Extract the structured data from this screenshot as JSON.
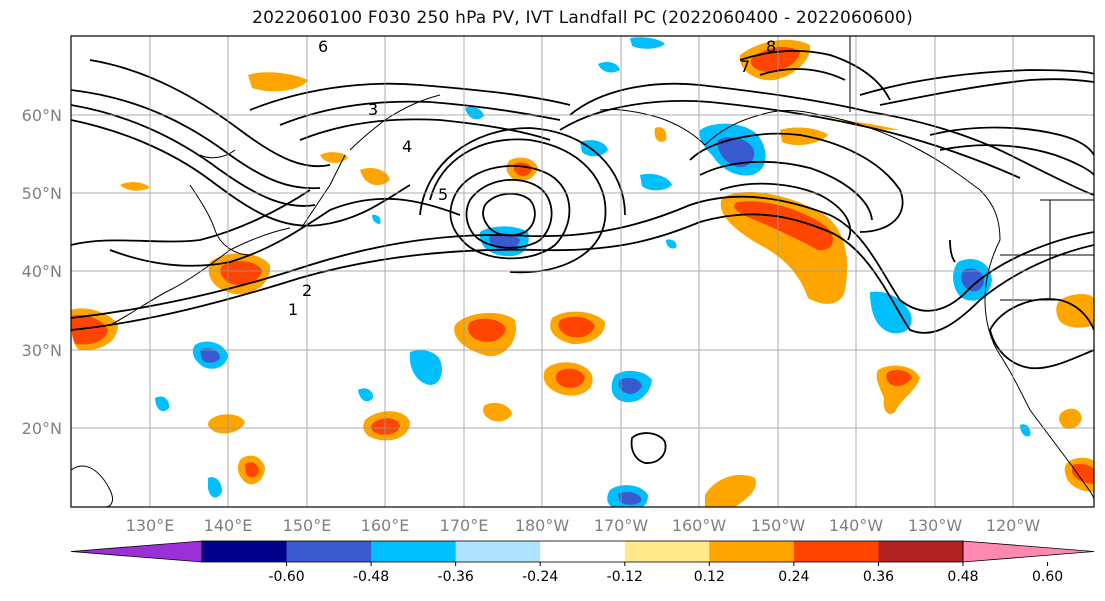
{
  "title": "2022060100 F030 250 hPa PV, IVT Landfall PC (2022060400 - 2022060600)",
  "map": {
    "lat_labels": [
      "60°N",
      "50°N",
      "40°N",
      "30°N",
      "20°N"
    ],
    "lon_labels": [
      "130°E",
      "140°E",
      "150°E",
      "160°E",
      "170°E",
      "180°W",
      "170°W",
      "160°W",
      "150°W",
      "140°W",
      "130°W",
      "120°W"
    ],
    "contour_labels": [
      "6",
      "5",
      "4",
      "3",
      "2",
      "1",
      "7",
      "8"
    ]
  },
  "colorbar": {
    "tick_labels": [
      "-0.60",
      "-0.48",
      "-0.36",
      "-0.24",
      "-0.12",
      "0.12",
      "0.24",
      "0.36",
      "0.48",
      "0.60"
    ],
    "colors": [
      "#9b30d6",
      "#00008b",
      "#3a5bd0",
      "#00bfff",
      "#b0e2ff",
      "#ffffff",
      "#ffe98a",
      "#ffa500",
      "#ff4500",
      "#b22222",
      "#ff88b0"
    ]
  }
}
